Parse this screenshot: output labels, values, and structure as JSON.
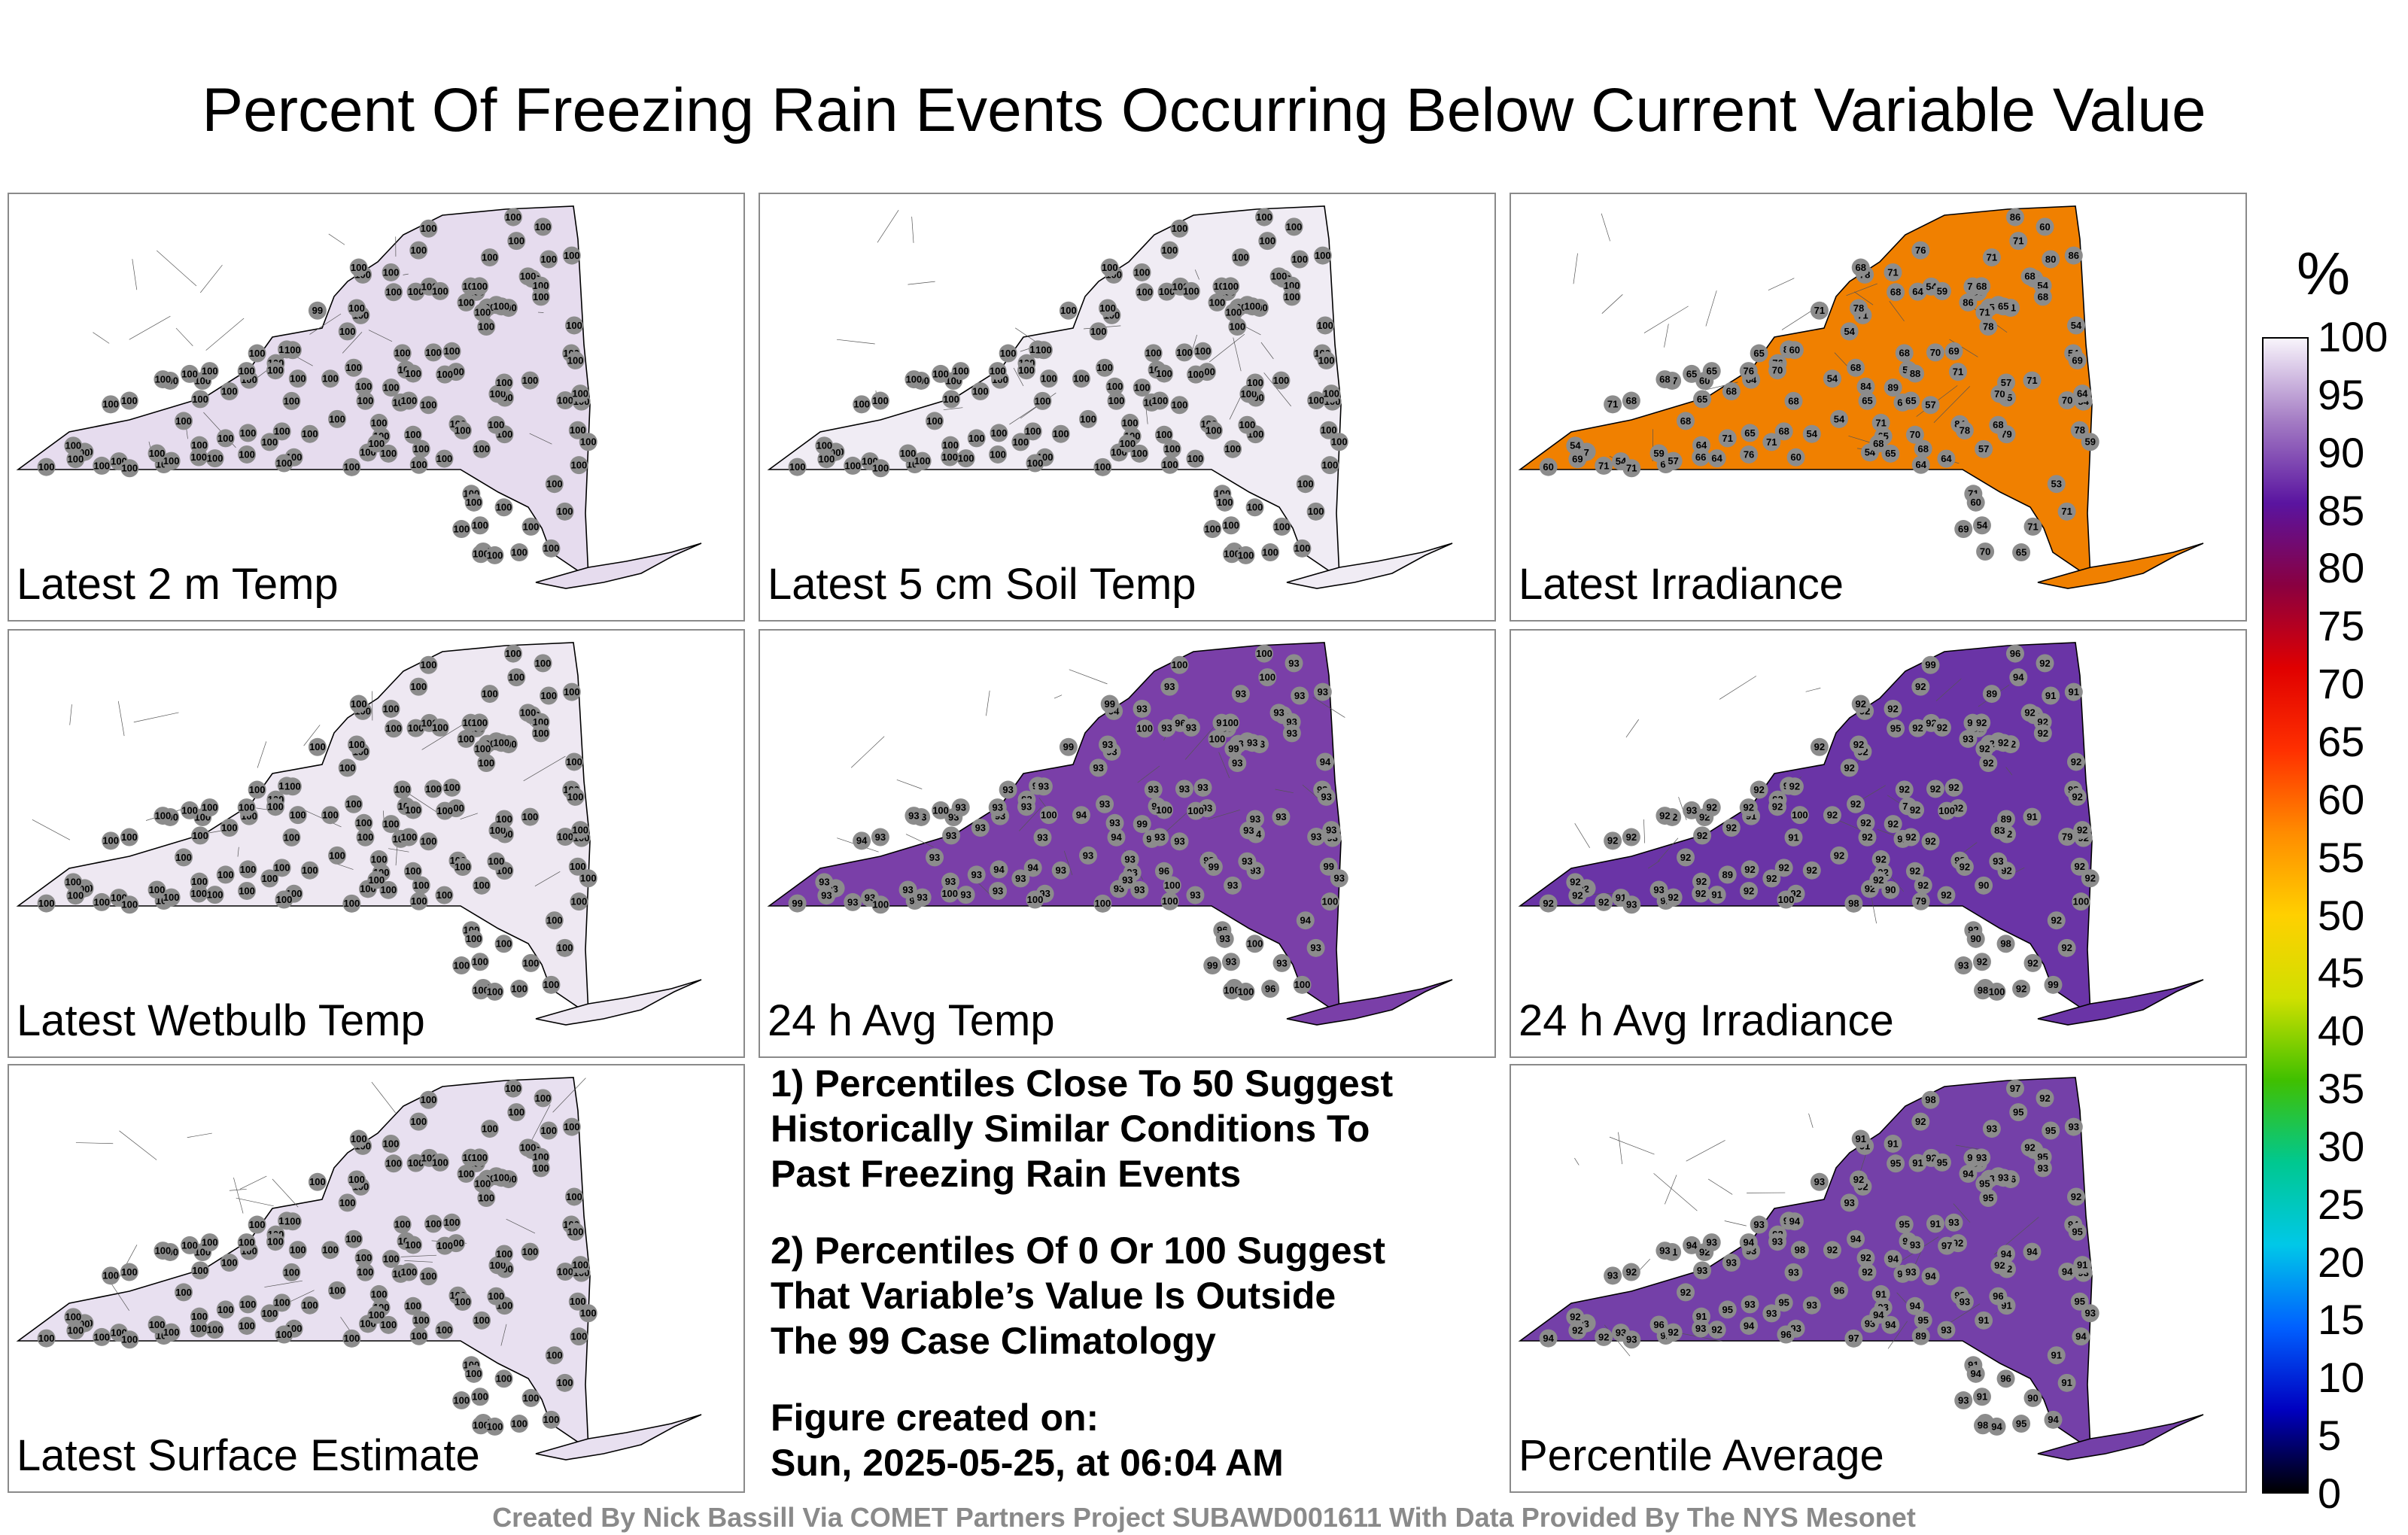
{
  "title": "Percent Of Freezing Rain Events Occurring Below Current Variable Value",
  "panels": [
    {
      "label": "Latest 2 m Temp",
      "fill": "#e6dcee"
    },
    {
      "label": "Latest 5 cm Soil Temp",
      "fill": "#f0ecf4"
    },
    {
      "label": "Latest Irradiance",
      "fill": "#f08000"
    },
    {
      "label": "Latest Wetbulb Temp",
      "fill": "#eee8f2"
    },
    {
      "label": "24 h Avg Temp",
      "fill": "#7a3fa8"
    },
    {
      "label": "24 h Avg Irradiance",
      "fill": "#6a34a6"
    },
    {
      "label": "Latest Surface Estimate",
      "fill": "#e8e0f0"
    },
    {
      "label": "Percentile Average",
      "fill": "#7440a8"
    }
  ],
  "notes": [
    "1) Percentiles Close To 50 Suggest\nHistorically Similar Conditions To\nPast Freezing Rain Events",
    "2) Percentiles Of 0 Or 100 Suggest\nThat Variable’s Value Is Outside\nThe 99 Case Climatology",
    "Figure created on:\nSun, 2025-05-25, at 06:04 AM"
  ],
  "footer": "Created By Nick Bassill Via COMET Partners Project SUBAWD001611 With Data Provided By The NYS Mesonet",
  "colorbar": {
    "unit": "%",
    "ticks": [
      "100",
      "95",
      "90",
      "85",
      "80",
      "75",
      "70",
      "65",
      "60",
      "55",
      "50",
      "45",
      "40",
      "35",
      "30",
      "25",
      "20",
      "15",
      "10",
      "5",
      "0"
    ],
    "stops": [
      "#f8f4fb",
      "#a47cc4",
      "#5a14a0",
      "#8a0040",
      "#e00000",
      "#ff3000",
      "#ff8c00",
      "#ffd000",
      "#d0e000",
      "#40c000",
      "#00c890",
      "#00c8e8",
      "#0060ff",
      "#0000c0",
      "#000000"
    ]
  },
  "station_values": {
    "Latest 2 m Temp": [
      "100",
      "100",
      "100",
      "100",
      "100",
      "100",
      "100",
      "100",
      "100",
      "100",
      "100",
      "100",
      "100",
      "100",
      "100",
      "100",
      "100",
      "100",
      "100",
      "100",
      "100",
      "100",
      "100",
      "100",
      "100",
      "100",
      "100",
      "100",
      "100",
      "100",
      "100",
      "100",
      "100",
      "100",
      "100",
      "100",
      "100",
      "100",
      "100",
      "100",
      "100",
      "100",
      "100",
      "100",
      "100",
      "100",
      "100",
      "100",
      "100",
      "100",
      "100",
      "100",
      "100",
      "100",
      "100",
      "100",
      "100",
      "99",
      "100",
      "100",
      "100",
      "100",
      "100",
      "100",
      "100",
      "100",
      "100",
      "100",
      "100",
      "100",
      "100",
      "100",
      "100",
      "100",
      "100",
      "100",
      "100",
      "100",
      "100",
      "100",
      "100",
      "100",
      "100",
      "100",
      "100",
      "100",
      "100",
      "100",
      "100",
      "100",
      "100",
      "100",
      "100",
      "100",
      "100",
      "100",
      "100",
      "100",
      "100",
      "100",
      "100",
      "100",
      "100",
      "100",
      "100",
      "100",
      "100",
      "100",
      "100",
      "100",
      "100",
      "100",
      "100",
      "100",
      "100",
      "100",
      "100",
      "100",
      "100",
      "100",
      "100",
      "100",
      "100",
      "100",
      "100",
      "100",
      "100",
      "100",
      "100",
      "100",
      "100"
    ],
    "Latest 5 cm Soil Temp": [
      "100",
      "100",
      "100",
      "100",
      "100",
      "100",
      "100",
      "100",
      "100",
      "100",
      "100",
      "100",
      "100",
      "100",
      "100",
      "100",
      "100",
      "100",
      "100",
      "100",
      "100",
      "100",
      "100",
      "100",
      "100",
      "100",
      "100",
      "100",
      "100",
      "100",
      "100",
      "100",
      "100",
      "100",
      "100",
      "100",
      "100",
      "100",
      "100",
      "100",
      "100",
      "100",
      "100",
      "100",
      "100",
      "100",
      "100",
      "100",
      "100",
      "100",
      "100",
      "100",
      "100",
      "100",
      "100",
      "100",
      "100",
      "100",
      "100",
      "100",
      "100",
      "100",
      "100",
      "100",
      "100",
      "100",
      "100",
      "100",
      "100",
      "100",
      "100",
      "100",
      "100",
      "100",
      "100",
      "100",
      "100",
      "100",
      "100",
      "100",
      "100",
      "100",
      "100",
      "100",
      "100",
      "100",
      "100",
      "100",
      "100",
      "100",
      "100",
      "100",
      "100",
      "100",
      "100",
      "100",
      "100",
      "100",
      "100",
      "100",
      "100",
      "100",
      "100",
      "100",
      "100",
      "100",
      "100",
      "100",
      "100",
      "100",
      "100",
      "100",
      "100",
      "100",
      "100",
      "100",
      "100",
      "100",
      "100",
      "100",
      "100",
      "100",
      "100",
      "100",
      "100",
      "100",
      "100",
      "100",
      "100",
      "100",
      "100"
    ],
    "Latest Irradiance": [
      "71",
      "64",
      "70",
      "84",
      "64",
      "80",
      "86",
      "86",
      "71",
      "86",
      "76",
      "71",
      "82",
      "68",
      "71",
      "68",
      "71",
      "54",
      "60",
      "78",
      "54",
      "68",
      "65",
      "54",
      "68",
      "65",
      "71",
      "68",
      "71",
      "60",
      "54",
      "64",
      "54",
      "57",
      "65",
      "71",
      "60",
      "70",
      "84",
      "78",
      "54",
      "53",
      "54",
      "65",
      "65",
      "57",
      "79",
      "71",
      "69",
      "64",
      "60",
      "65",
      "68",
      "54",
      "71",
      "68",
      "57",
      "71",
      "71",
      "69",
      "64",
      "54",
      "65",
      "70",
      "70",
      "54",
      "65",
      "65",
      "76",
      "59",
      "76",
      "57",
      "54",
      "71",
      "64",
      "69",
      "57",
      "65",
      "60",
      "54",
      "71",
      "70",
      "78",
      "68",
      "65",
      "59",
      "54",
      "64",
      "68",
      "60",
      "59",
      "57",
      "78",
      "70",
      "64",
      "65",
      "76",
      "69",
      "64",
      "71",
      "65",
      "68",
      "68",
      "59",
      "78",
      "68",
      "71",
      "68",
      "70",
      "71",
      "71",
      "68",
      "65",
      "89",
      "88",
      "71",
      "66",
      "68",
      "86",
      "68",
      "86"
    ],
    "Latest Wetbulb Temp": [
      "100",
      "100",
      "100",
      "100",
      "100",
      "100",
      "100",
      "100",
      "100",
      "100",
      "100",
      "100",
      "100",
      "100",
      "100",
      "100",
      "100",
      "100",
      "100",
      "100",
      "100",
      "100",
      "100",
      "100",
      "100",
      "100",
      "100",
      "100",
      "100",
      "100",
      "100",
      "100",
      "100",
      "100",
      "100",
      "100",
      "100",
      "100",
      "100",
      "100",
      "100",
      "100",
      "100",
      "100",
      "100",
      "100",
      "100",
      "100",
      "100",
      "100",
      "100",
      "100",
      "100",
      "100",
      "100",
      "100",
      "100",
      "100",
      "100",
      "100",
      "100",
      "100",
      "100",
      "100",
      "100",
      "100",
      "100",
      "100",
      "100",
      "100",
      "100",
      "100",
      "100",
      "100",
      "100",
      "100",
      "100",
      "100",
      "100",
      "100",
      "100",
      "100",
      "100",
      "100",
      "100",
      "100",
      "100",
      "100",
      "100",
      "100",
      "100",
      "100",
      "100",
      "100",
      "100",
      "100",
      "100",
      "100",
      "100",
      "100",
      "100",
      "100",
      "100",
      "100",
      "100",
      "100",
      "100",
      "100",
      "100",
      "100",
      "100",
      "100",
      "100",
      "100",
      "100",
      "100",
      "100",
      "100",
      "100",
      "100",
      "100",
      "100",
      "100",
      "100",
      "100",
      "100",
      "100",
      "100",
      "100",
      "100",
      "100"
    ],
    "24 h Avg Temp": [
      "93",
      "93",
      "93",
      "93",
      "93",
      "93",
      "93",
      "93",
      "93",
      "93",
      "93",
      "93",
      "93",
      "94",
      "93",
      "93",
      "93",
      "93",
      "93",
      "94",
      "93",
      "93",
      "93",
      "93",
      "93",
      "94",
      "93",
      "93",
      "93",
      "93",
      "93",
      "93",
      "94",
      "93",
      "93",
      "96",
      "93",
      "93",
      "93",
      "99",
      "94",
      "94",
      "93",
      "96",
      "94",
      "93",
      "93",
      "94",
      "93",
      "93",
      "99",
      "93",
      "93",
      "96",
      "93",
      "93",
      "93",
      "99",
      "93",
      "93",
      "93",
      "93",
      "93",
      "93",
      "93",
      "93",
      "93",
      "93",
      "93",
      "93",
      "93",
      "93",
      "93",
      "93",
      "100",
      "93",
      "93",
      "93",
      "93",
      "93",
      "93",
      "93",
      "93",
      "93",
      "93",
      "93",
      "93",
      "93",
      "93",
      "93",
      "93",
      "93",
      "93",
      "96",
      "93",
      "93",
      "93",
      "99",
      "93",
      "93",
      "94",
      "93",
      "93",
      "93",
      "99",
      "93",
      "93",
      "99",
      "93",
      "100",
      "99",
      "100",
      "100",
      "99",
      "100",
      "100",
      "100",
      "100",
      "100",
      "100",
      "100",
      "100",
      "100",
      "100",
      "100",
      "100",
      "100",
      "100",
      "100",
      "100",
      "100"
    ],
    "24 h Avg Irradiance": [
      "91",
      "91",
      "89",
      "92",
      "91",
      "91",
      "91",
      "91",
      "92",
      "92",
      "92",
      "92",
      "92",
      "92",
      "92",
      "92",
      "89",
      "92",
      "92",
      "92",
      "92",
      "91",
      "92",
      "92",
      "92",
      "92",
      "92",
      "92",
      "92",
      "92",
      "92",
      "92",
      "92",
      "92",
      "92",
      "92",
      "92",
      "92",
      "92",
      "92",
      "92",
      "92",
      "92",
      "92",
      "92",
      "92",
      "92",
      "92",
      "92",
      "92",
      "92",
      "92",
      "92",
      "92",
      "92",
      "92",
      "92",
      "92",
      "92",
      "92",
      "92",
      "92",
      "92",
      "79",
      "83",
      "92",
      "92",
      "92",
      "92",
      "92",
      "92",
      "92",
      "91",
      "89",
      "79",
      "92",
      "89",
      "90",
      "92",
      "92",
      "92",
      "92",
      "92",
      "92",
      "92",
      "92",
      "92",
      "92",
      "92",
      "90",
      "79",
      "90",
      "92",
      "92",
      "92",
      "92",
      "92",
      "93",
      "92",
      "92",
      "92",
      "92",
      "92",
      "93",
      "92",
      "93",
      "92",
      "92",
      "92",
      "93",
      "92",
      "92",
      "93",
      "92",
      "92",
      "94",
      "92",
      "95",
      "93",
      "92",
      "96",
      "98",
      "98",
      "98",
      "99",
      "99",
      "100",
      "100",
      "100",
      "100",
      "100"
    ],
    "Latest Surface Estimate": [
      "100",
      "100",
      "100",
      "100",
      "100",
      "100",
      "100",
      "100",
      "100",
      "100",
      "100",
      "100",
      "100",
      "100",
      "100",
      "100",
      "100",
      "100",
      "100",
      "100",
      "100",
      "100",
      "100",
      "100",
      "100",
      "100",
      "100",
      "100",
      "100",
      "100",
      "100",
      "100",
      "100",
      "100",
      "100",
      "100",
      "100",
      "100",
      "100",
      "100",
      "100",
      "100",
      "100",
      "100",
      "100",
      "100",
      "100",
      "100",
      "100",
      "100",
      "100",
      "100",
      "100",
      "100",
      "100",
      "100",
      "100",
      "100",
      "100",
      "100",
      "100",
      "100",
      "100",
      "100",
      "100",
      "100",
      "100",
      "100",
      "100",
      "100",
      "100",
      "100",
      "100",
      "100",
      "100",
      "100",
      "100",
      "100",
      "100",
      "100",
      "100",
      "100",
      "100",
      "100",
      "100",
      "100",
      "100",
      "100",
      "100",
      "100",
      "100",
      "100",
      "100",
      "100",
      "100",
      "100",
      "100",
      "100",
      "100",
      "100",
      "100",
      "100",
      "100",
      "100",
      "100",
      "100",
      "100",
      "100",
      "100",
      "100",
      "100",
      "100",
      "100",
      "100",
      "100",
      "100",
      "100",
      "100",
      "100",
      "100",
      "100",
      "100",
      "100",
      "100",
      "100",
      "100",
      "100",
      "100",
      "100",
      "100",
      "100"
    ],
    "Percentile Average": [
      "94",
      "93",
      "96",
      "92",
      "92",
      "95",
      "94",
      "93",
      "93",
      "96",
      "94",
      "92",
      "91",
      "95",
      "90",
      "93",
      "93",
      "96",
      "93",
      "91",
      "93",
      "93",
      "93",
      "94",
      "92",
      "92",
      "96",
      "94",
      "91",
      "92",
      "93",
      "91",
      "92",
      "93",
      "94",
      "91",
      "94",
      "94",
      "93",
      "93",
      "92",
      "91",
      "95",
      "95",
      "93",
      "91",
      "91",
      "93",
      "93",
      "96",
      "94",
      "93",
      "94",
      "92",
      "91",
      "92",
      "94",
      "93",
      "92",
      "95",
      "92",
      "91",
      "93",
      "94",
      "92",
      "93",
      "93",
      "93",
      "92",
      "93",
      "94",
      "92",
      "93",
      "95",
      "89",
      "92",
      "94",
      "94",
      "92",
      "92",
      "91",
      "91",
      "92",
      "93",
      "93",
      "95",
      "93",
      "91",
      "92",
      "94",
      "92",
      "91",
      "95",
      "94",
      "93",
      "93",
      "92",
      "93",
      "91",
      "92",
      "92",
      "93",
      "95",
      "96",
      "95",
      "96",
      "93",
      "91",
      "93",
      "93",
      "95",
      "93",
      "94",
      "94",
      "93",
      "95",
      "93",
      "95",
      "94",
      "95",
      "97",
      "98",
      "97",
      "96",
      "98",
      "94",
      "94",
      "96",
      "98",
      "97",
      "94"
    ]
  }
}
